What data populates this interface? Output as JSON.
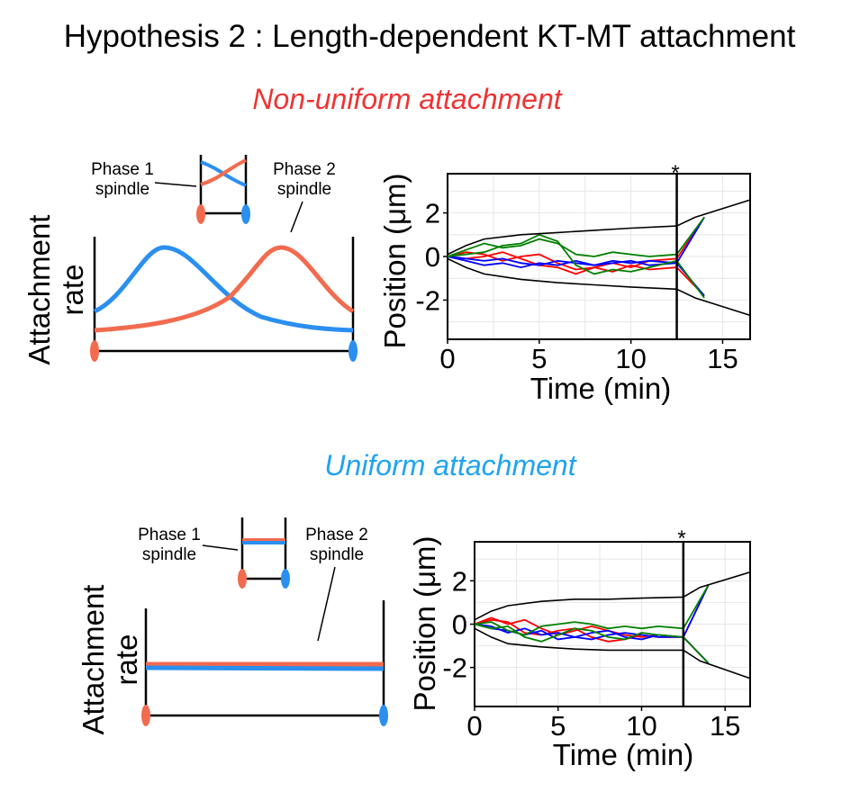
{
  "title": "Hypothesis 2 : Length-dependent KT-MT attachment",
  "colors": {
    "red": "#f26b4f",
    "blue": "#2b8ff0",
    "subtitle_red": "#f03232",
    "subtitle_blue": "#1fa3f0",
    "trace_red": "#ff0000",
    "trace_blue": "#0000ff",
    "trace_green": "#008000"
  },
  "panels": [
    {
      "id": "non-uniform",
      "subtitle": "Non-uniform attachment",
      "phase1_label": [
        "Phase 1",
        "spindle"
      ],
      "phase2_label": [
        "Phase 2",
        "spindle"
      ],
      "attachment_ylabel": [
        "Attachment",
        "rate"
      ],
      "profile": "non-uniform",
      "chart_data": {
        "type": "line",
        "xlabel": "Time (min)",
        "ylabel": "Position (μm)",
        "xlim": [
          0,
          16.5
        ],
        "ylim": [
          -3.8,
          3.8
        ],
        "xticks": [
          0,
          5,
          10,
          15
        ],
        "yticks": [
          2,
          0,
          -2
        ],
        "annotation": "*",
        "marker_time": 12.5,
        "grid": true,
        "boundary": {
          "upper_t": [
            0,
            1,
            2,
            4,
            6,
            8,
            10,
            12.5,
            13.5,
            16.5
          ],
          "upper_y": [
            0.1,
            0.5,
            0.8,
            1.0,
            1.1,
            1.2,
            1.3,
            1.4,
            1.8,
            2.6
          ],
          "lower_t": [
            0,
            1,
            2,
            4,
            6,
            8,
            10,
            12.5,
            13.5,
            16.5
          ],
          "lower_y": [
            -0.1,
            -0.5,
            -0.8,
            -1.05,
            -1.2,
            -1.3,
            -1.4,
            -1.5,
            -1.9,
            -2.7
          ]
        },
        "series": [
          {
            "color": "red",
            "t": [
              0,
              1,
              2,
              3,
              4,
              5,
              6,
              7,
              8,
              9,
              10,
              11,
              12.5,
              14
            ],
            "y": [
              0.0,
              0.2,
              0.1,
              -0.2,
              0.0,
              0.1,
              -0.3,
              -0.6,
              -0.5,
              -0.3,
              -0.5,
              -0.2,
              -0.1,
              1.8
            ]
          },
          {
            "color": "red",
            "t": [
              0,
              1,
              2,
              3,
              4,
              5,
              6,
              7,
              8,
              9,
              10,
              11,
              12.5,
              14
            ],
            "y": [
              0.0,
              -0.1,
              0.0,
              0.2,
              -0.1,
              -0.4,
              -0.5,
              -0.8,
              -0.5,
              -0.7,
              -0.4,
              -0.6,
              -0.5,
              -1.8
            ]
          },
          {
            "color": "blue",
            "t": [
              0,
              1,
              2,
              3,
              4,
              5,
              6,
              7,
              8,
              9,
              10,
              11,
              12.5,
              14
            ],
            "y": [
              0.0,
              -0.2,
              -0.4,
              -0.3,
              -0.5,
              -0.3,
              -0.4,
              -0.2,
              -0.4,
              -0.3,
              -0.2,
              -0.4,
              -0.3,
              1.8
            ]
          },
          {
            "color": "blue",
            "t": [
              0,
              1,
              2,
              3,
              4,
              5,
              6,
              7,
              8,
              9,
              10,
              11,
              12.5,
              14
            ],
            "y": [
              0.0,
              -0.1,
              -0.2,
              -0.1,
              -0.3,
              -0.4,
              -0.2,
              -0.3,
              -0.4,
              -0.2,
              -0.3,
              -0.2,
              -0.3,
              -1.8
            ]
          },
          {
            "color": "green",
            "t": [
              0,
              1,
              2,
              3,
              4,
              5,
              6,
              7,
              8,
              9,
              10,
              11,
              12.5,
              14
            ],
            "y": [
              0.0,
              0.3,
              0.6,
              0.4,
              0.5,
              0.8,
              0.6,
              0.1,
              0.0,
              0.2,
              0.1,
              0.0,
              0.1,
              1.8
            ]
          },
          {
            "color": "green",
            "t": [
              0,
              1,
              2,
              3,
              4,
              5,
              6,
              7,
              8,
              9,
              10,
              11,
              12.5,
              14
            ],
            "y": [
              0.0,
              0.1,
              0.2,
              0.5,
              0.6,
              1.0,
              0.7,
              -0.4,
              -0.8,
              -0.6,
              -0.7,
              -0.5,
              -0.2,
              -1.9
            ]
          }
        ]
      }
    },
    {
      "id": "uniform",
      "subtitle": "Uniform attachment",
      "phase1_label": [
        "Phase 1",
        "spindle"
      ],
      "phase2_label": [
        "Phase 2",
        "spindle"
      ],
      "attachment_ylabel": [
        "Attachment",
        "rate"
      ],
      "profile": "uniform",
      "chart_data": {
        "type": "line",
        "xlabel": "Time (min)",
        "ylabel": "Position (μm)",
        "xlim": [
          0,
          16.5
        ],
        "ylim": [
          -3.8,
          3.8
        ],
        "xticks": [
          0,
          5,
          10,
          15
        ],
        "yticks": [
          2,
          0,
          -2
        ],
        "annotation": "*",
        "marker_time": 12.5,
        "grid": true,
        "boundary": {
          "upper_t": [
            0,
            1,
            2,
            4,
            6,
            8,
            10,
            12.5,
            13.5,
            16.5
          ],
          "upper_y": [
            0.2,
            0.6,
            0.85,
            1.05,
            1.15,
            1.15,
            1.2,
            1.25,
            1.7,
            2.4
          ],
          "lower_t": [
            0,
            1,
            2,
            4,
            6,
            8,
            10,
            12.5,
            13.5,
            16.5
          ],
          "lower_y": [
            -0.2,
            -0.6,
            -0.9,
            -1.05,
            -1.15,
            -1.2,
            -1.2,
            -1.2,
            -1.7,
            -2.5
          ]
        },
        "series": [
          {
            "color": "red",
            "t": [
              0,
              1,
              2,
              3,
              4,
              5,
              6,
              7,
              8,
              9,
              10,
              11,
              12.5,
              14
            ],
            "y": [
              0.0,
              0.2,
              0.1,
              -0.4,
              -0.5,
              -0.3,
              -0.2,
              -0.6,
              -0.8,
              -0.7,
              -0.5,
              -0.6,
              -0.6,
              1.8
            ]
          },
          {
            "color": "red",
            "t": [
              0,
              1,
              2,
              3,
              4,
              5,
              6,
              7,
              8,
              9,
              10,
              11,
              12.5,
              14
            ],
            "y": [
              0.0,
              0.3,
              0.0,
              0.2,
              -0.2,
              -0.5,
              -0.3,
              -0.1,
              -0.3,
              -0.5,
              -0.6,
              -0.5,
              -0.6,
              -1.8
            ]
          },
          {
            "color": "blue",
            "t": [
              0,
              1,
              2,
              3,
              4,
              5,
              6,
              7,
              8,
              9,
              10,
              11,
              12.5,
              14
            ],
            "y": [
              0.0,
              -0.2,
              -0.3,
              -0.5,
              -0.3,
              -0.7,
              -0.6,
              -0.4,
              -0.3,
              -0.6,
              -0.7,
              -0.5,
              -0.6,
              1.8
            ]
          },
          {
            "color": "blue",
            "t": [
              0,
              1,
              2,
              3,
              4,
              5,
              6,
              7,
              8,
              9,
              10,
              11,
              12.5,
              14
            ],
            "y": [
              0.0,
              -0.1,
              -0.4,
              -0.2,
              -0.5,
              -0.4,
              -0.6,
              -0.7,
              -0.5,
              -0.4,
              -0.5,
              -0.6,
              -0.6,
              -1.8
            ]
          },
          {
            "color": "green",
            "t": [
              0,
              1,
              2,
              3,
              4,
              5,
              6,
              7,
              8,
              9,
              10,
              11,
              12.5,
              14
            ],
            "y": [
              0.0,
              0.1,
              -0.3,
              -0.5,
              -0.1,
              0.0,
              0.1,
              0.0,
              -0.2,
              -0.1,
              -0.2,
              -0.1,
              -0.2,
              1.8
            ]
          },
          {
            "color": "green",
            "t": [
              0,
              1,
              2,
              3,
              4,
              5,
              6,
              7,
              8,
              9,
              10,
              11,
              12.5,
              14
            ],
            "y": [
              0.0,
              -0.2,
              -0.1,
              -0.6,
              -0.8,
              -0.5,
              -0.2,
              -0.3,
              -0.6,
              -0.7,
              -0.4,
              -0.5,
              -0.6,
              -1.8
            ]
          }
        ]
      }
    }
  ]
}
